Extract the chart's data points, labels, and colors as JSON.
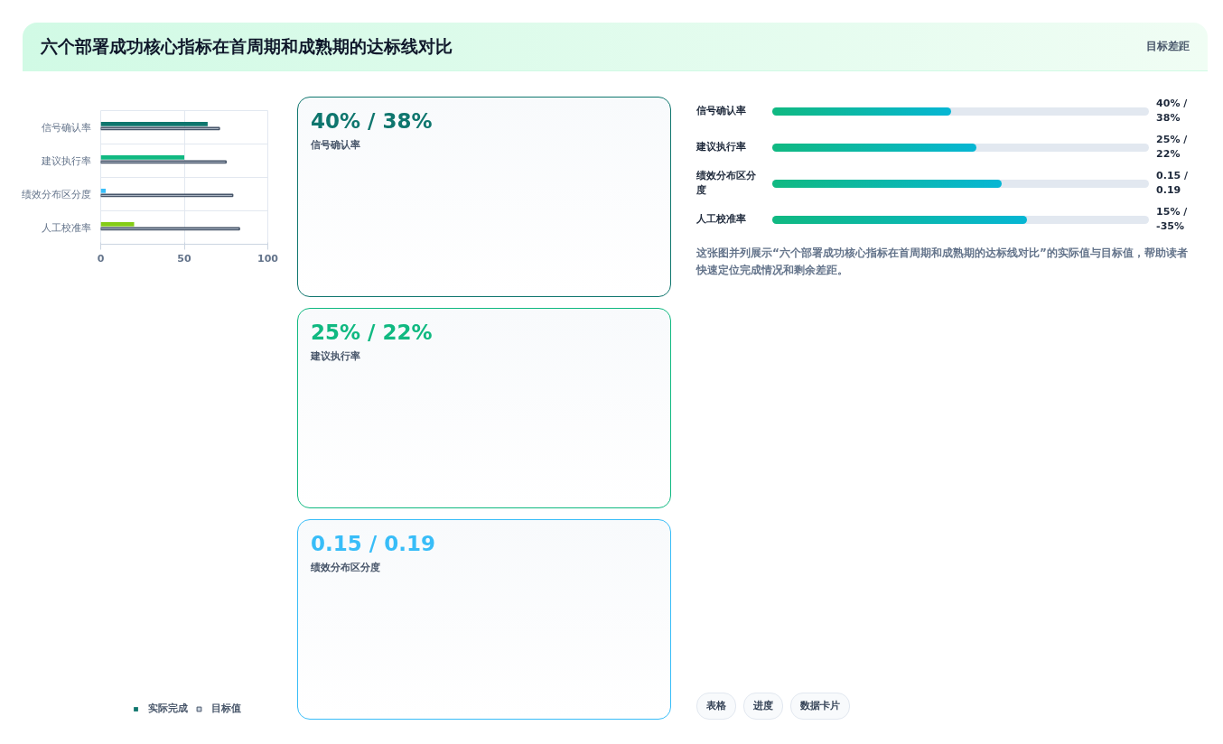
{
  "chart_data": [
    {
      "type": "other",
      "title": "六个部署成功核心指标在首周期和成熟期的达标线对比",
      "subtitle": "目标差距"
    },
    {
      "type": "bar",
      "orientation": "horizontal",
      "categories": [
        "信号确认率",
        "建议执行率",
        "绩效分布区分度",
        "人工校准率"
      ],
      "series": [
        {
          "name": "实际完成",
          "color": "#0f766e",
          "colors": [
            "#0f766e",
            "#10b981",
            "#38bdf8",
            "#84cc16"
          ],
          "values": [
            64,
            50,
            3,
            20
          ]
        },
        {
          "name": "目标值",
          "color": "#cbd5e1",
          "values": [
            71,
            75,
            79,
            83
          ]
        }
      ],
      "xlim": [
        0,
        100
      ],
      "xticks": [
        0,
        50,
        100
      ],
      "grid": true,
      "legend": "bottom"
    },
    {
      "type": "other",
      "categories": [
        "信号确认率",
        "建议执行率",
        "绩效分布区分度"
      ],
      "value_labels": [
        "40% / 38%",
        "25% / 22%",
        "0.15 / 0.19"
      ],
      "colors": [
        "#0f766e",
        "#10b981",
        "#38bdf8"
      ]
    },
    {
      "type": "other",
      "categories": [
        "信号确认率",
        "建议执行率",
        "绩效分布区分度",
        "人工校准率"
      ],
      "value_labels": [
        "40% / 38%",
        "25% / 22%",
        "0.15 / 0.19",
        "15% / -35%"
      ],
      "annotations": [
        "这张图并列展示“六个部署成功核心指标在首周期和成熟期的达标线对比”的实际值与目标值，帮助读者快速定位完成情况和剩余差距。",
        "表格",
        "进度",
        "数据卡片"
      ]
    }
  ]
}
